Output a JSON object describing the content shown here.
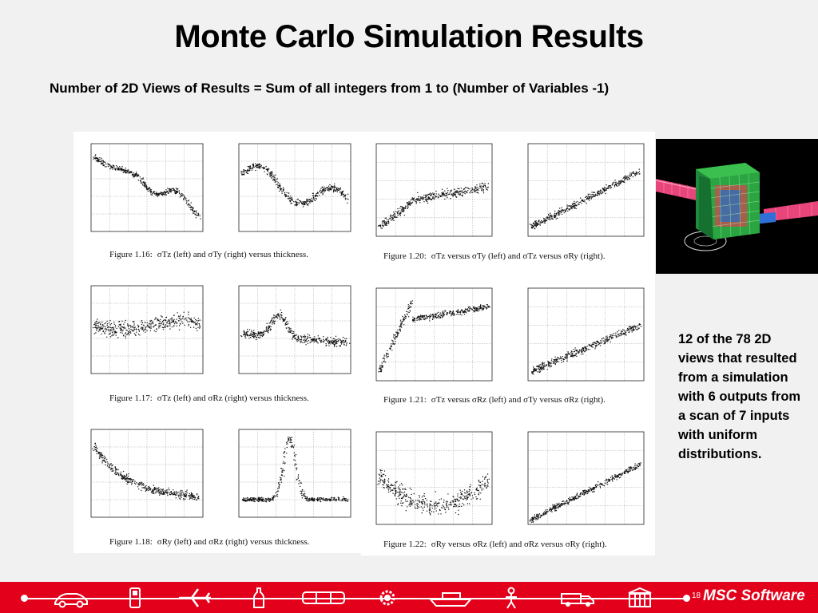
{
  "slide": {
    "title": "Monte Carlo Simulation Results",
    "subtitle": "Number of 2D Views of Results = Sum of all integers from 1 to (Number of Variables -1)",
    "note": "12 of the 78 2D views that resulted from a simulation with 6 outputs from a scan of 7 inputs with uniform distributions.",
    "page_number": "18",
    "logo_text": "MSC Software"
  },
  "figures": [
    {
      "prefix": "Figure 1.16:",
      "text": "σTz (left) and σTy (right) versus thickness."
    },
    {
      "prefix": "Figure 1.17:",
      "text": "σTz (left) and σRz (right) versus thickness."
    },
    {
      "prefix": "Figure 1.18:",
      "text": "σRy (left) and σRz (right) versus thickness."
    },
    {
      "prefix": "Figure 1.20:",
      "text": "σTz versus σTy (left) and σTz versus σRy (right)."
    },
    {
      "prefix": "Figure 1.21:",
      "text": "σTz versus σRz (left) and σTy versus σRz (right)."
    },
    {
      "prefix": "Figure 1.22:",
      "text": "σRy versus σRz (left) and σRz versus σRy (right)."
    }
  ],
  "footer_icons": [
    "car-icon",
    "phone-icon",
    "airplane-icon",
    "bottle-icon",
    "train-icon",
    "gear-icon",
    "ship-icon",
    "person-icon",
    "truck-icon",
    "building-icon"
  ],
  "colors": {
    "footer": "#e2001a",
    "background": "#f1f1f1",
    "plot_points": "#111111"
  }
}
